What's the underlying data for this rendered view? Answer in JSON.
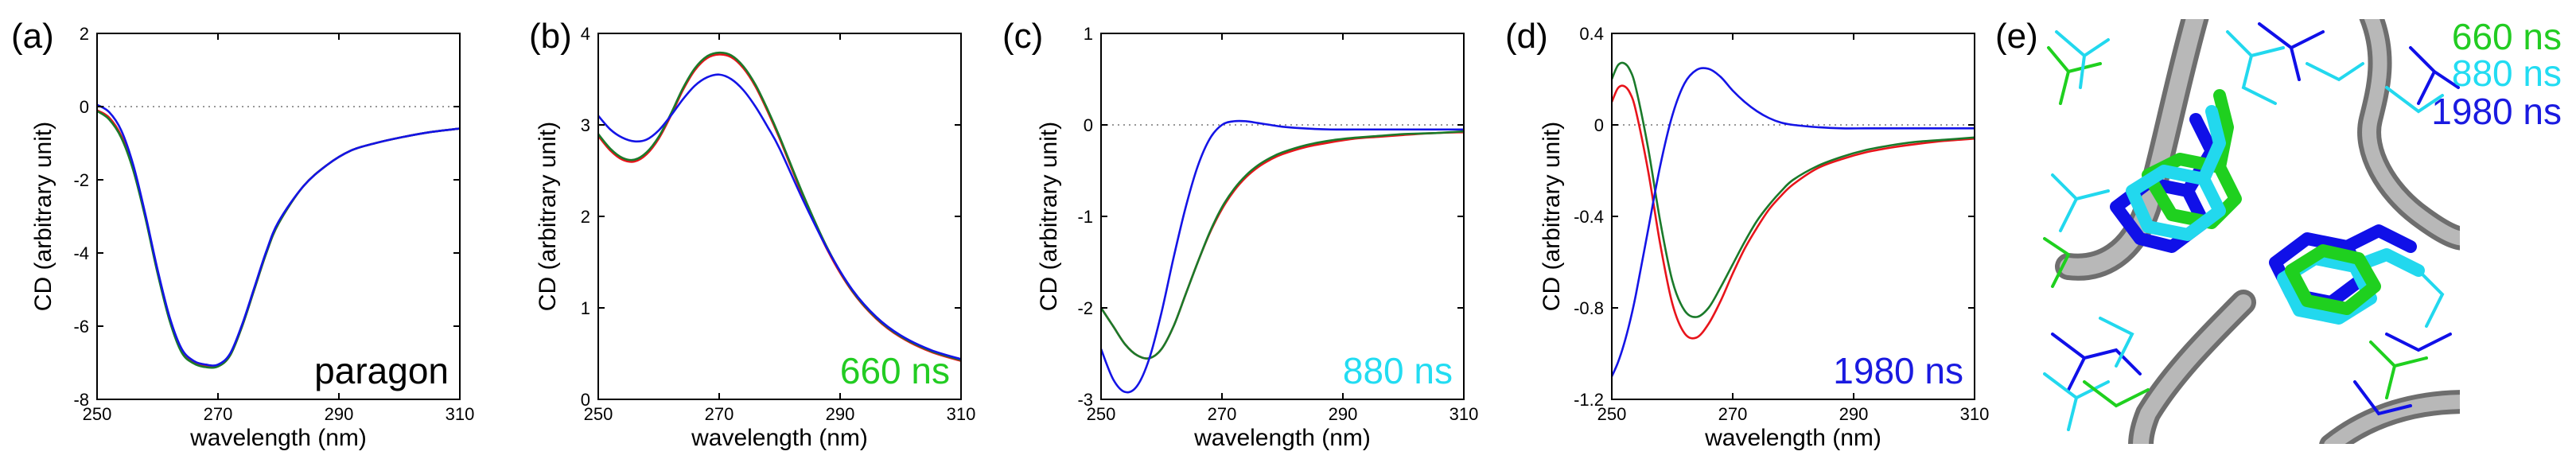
{
  "colors": {
    "red": "#e8141b",
    "green": "#1a7a2a",
    "blue": "#1414e6",
    "ann_green": "#22cc22",
    "ann_cyan": "#22dcf2",
    "ann_blue": "#1a1ae0",
    "structure_green": "#1fd01f",
    "structure_cyan": "#22d8ee",
    "structure_blue": "#1010e8",
    "backbone_gray": "#9a9a9a"
  },
  "chart_data": [
    {
      "type": "line",
      "panel_label": "(a)",
      "annotation": "paragon",
      "annotation_color": "#000000",
      "xlabel": "wavelength (nm)",
      "ylabel": "CD (arbitrary unit)",
      "xlim": [
        250,
        310
      ],
      "ylim": [
        -8,
        2
      ],
      "xticks": [
        250,
        270,
        290,
        310
      ],
      "yticks": [
        -8,
        -6,
        -4,
        -2,
        0,
        2
      ],
      "zero_line": true,
      "series": [
        {
          "name": "red",
          "color": "#e8141b",
          "x": [
            250,
            252,
            254,
            256,
            258,
            260,
            262,
            264,
            266,
            268,
            270,
            272,
            274,
            276,
            278,
            280,
            284,
            288,
            292,
            296,
            300,
            305,
            310
          ],
          "y": [
            -0.1,
            -0.3,
            -0.8,
            -1.7,
            -3.0,
            -4.5,
            -5.8,
            -6.7,
            -7.0,
            -7.1,
            -7.1,
            -6.8,
            -6.0,
            -5.0,
            -4.0,
            -3.2,
            -2.2,
            -1.6,
            -1.2,
            -1.0,
            -0.85,
            -0.7,
            -0.6
          ]
        },
        {
          "name": "green",
          "color": "#1a7a2a",
          "x": [
            250,
            252,
            254,
            256,
            258,
            260,
            262,
            264,
            266,
            268,
            270,
            272,
            274,
            276,
            278,
            280,
            284,
            288,
            292,
            296,
            300,
            305,
            310
          ],
          "y": [
            -0.12,
            -0.35,
            -0.85,
            -1.75,
            -3.05,
            -4.55,
            -5.85,
            -6.72,
            -7.02,
            -7.12,
            -7.1,
            -6.8,
            -6.0,
            -5.0,
            -4.0,
            -3.2,
            -2.2,
            -1.6,
            -1.2,
            -1.0,
            -0.85,
            -0.7,
            -0.6
          ]
        },
        {
          "name": "blue",
          "color": "#1414e6",
          "x": [
            250,
            252,
            254,
            256,
            258,
            260,
            262,
            264,
            266,
            268,
            270,
            272,
            274,
            276,
            278,
            280,
            284,
            288,
            292,
            296,
            300,
            305,
            310
          ],
          "y": [
            0.05,
            -0.15,
            -0.65,
            -1.6,
            -2.95,
            -4.45,
            -5.75,
            -6.62,
            -6.95,
            -7.05,
            -7.05,
            -6.75,
            -5.95,
            -4.95,
            -3.95,
            -3.15,
            -2.2,
            -1.6,
            -1.2,
            -1.0,
            -0.85,
            -0.7,
            -0.6
          ]
        }
      ]
    },
    {
      "type": "line",
      "panel_label": "(b)",
      "annotation": "660 ns",
      "annotation_color": "#22cc22",
      "xlabel": "wavelength (nm)",
      "ylabel": "CD (arbitrary unit)",
      "xlim": [
        250,
        310
      ],
      "ylim": [
        0,
        4
      ],
      "xticks": [
        250,
        270,
        290,
        310
      ],
      "yticks": [
        0,
        1,
        2,
        3,
        4
      ],
      "zero_line": false,
      "series": [
        {
          "name": "red",
          "color": "#e8141b",
          "x": [
            250,
            252,
            254,
            256,
            258,
            260,
            262,
            264,
            266,
            268,
            270,
            272,
            274,
            276,
            278,
            280,
            284,
            288,
            292,
            296,
            300,
            305,
            310
          ],
          "y": [
            2.88,
            2.72,
            2.62,
            2.6,
            2.68,
            2.85,
            3.1,
            3.38,
            3.6,
            3.73,
            3.77,
            3.74,
            3.62,
            3.42,
            3.15,
            2.85,
            2.2,
            1.62,
            1.18,
            0.88,
            0.68,
            0.52,
            0.42
          ]
        },
        {
          "name": "green",
          "color": "#1a7a2a",
          "x": [
            250,
            252,
            254,
            256,
            258,
            260,
            262,
            264,
            266,
            268,
            270,
            272,
            274,
            276,
            278,
            280,
            284,
            288,
            292,
            296,
            300,
            305,
            310
          ],
          "y": [
            2.9,
            2.74,
            2.64,
            2.62,
            2.7,
            2.87,
            3.12,
            3.4,
            3.62,
            3.75,
            3.79,
            3.76,
            3.64,
            3.44,
            3.17,
            2.87,
            2.22,
            1.64,
            1.19,
            0.89,
            0.69,
            0.53,
            0.43
          ]
        },
        {
          "name": "blue",
          "color": "#1414e6",
          "x": [
            250,
            252,
            254,
            256,
            258,
            260,
            262,
            264,
            266,
            268,
            270,
            272,
            274,
            276,
            278,
            280,
            284,
            288,
            292,
            296,
            300,
            305,
            310
          ],
          "y": [
            3.1,
            2.95,
            2.86,
            2.82,
            2.84,
            2.94,
            3.1,
            3.28,
            3.43,
            3.52,
            3.55,
            3.5,
            3.38,
            3.2,
            2.98,
            2.74,
            2.16,
            1.63,
            1.2,
            0.9,
            0.7,
            0.54,
            0.44
          ]
        }
      ]
    },
    {
      "type": "line",
      "panel_label": "(c)",
      "annotation": "880 ns",
      "annotation_color": "#22dcf2",
      "xlabel": "wavelength (nm)",
      "ylabel": "CD (arbitrary unit)",
      "xlim": [
        250,
        310
      ],
      "ylim": [
        -3,
        1
      ],
      "xticks": [
        250,
        270,
        290,
        310
      ],
      "yticks": [
        -3,
        -2,
        -1,
        0,
        1
      ],
      "zero_line": true,
      "series": [
        {
          "name": "red",
          "color": "#e8141b",
          "x": [
            250,
            252,
            254,
            256,
            258,
            260,
            262,
            264,
            266,
            268,
            270,
            272,
            274,
            276,
            278,
            280,
            284,
            288,
            292,
            296,
            300,
            305,
            310
          ],
          "y": [
            -2.0,
            -2.2,
            -2.4,
            -2.52,
            -2.55,
            -2.45,
            -2.2,
            -1.85,
            -1.5,
            -1.18,
            -0.92,
            -0.72,
            -0.57,
            -0.46,
            -0.38,
            -0.32,
            -0.24,
            -0.19,
            -0.15,
            -0.13,
            -0.11,
            -0.09,
            -0.08
          ]
        },
        {
          "name": "green",
          "color": "#1a7a2a",
          "x": [
            250,
            252,
            254,
            256,
            258,
            260,
            262,
            264,
            266,
            268,
            270,
            272,
            274,
            276,
            278,
            280,
            284,
            288,
            292,
            296,
            300,
            305,
            310
          ],
          "y": [
            -2.0,
            -2.2,
            -2.4,
            -2.52,
            -2.55,
            -2.45,
            -2.2,
            -1.85,
            -1.5,
            -1.17,
            -0.9,
            -0.7,
            -0.55,
            -0.44,
            -0.36,
            -0.3,
            -0.22,
            -0.17,
            -0.14,
            -0.12,
            -0.1,
            -0.09,
            -0.07
          ]
        },
        {
          "name": "blue",
          "color": "#1414e6",
          "x": [
            250,
            252,
            254,
            256,
            258,
            260,
            262,
            264,
            266,
            268,
            270,
            272,
            274,
            276,
            278,
            280,
            284,
            288,
            292,
            296,
            300,
            305,
            310
          ],
          "y": [
            -2.45,
            -2.78,
            -2.92,
            -2.85,
            -2.55,
            -2.05,
            -1.45,
            -0.9,
            -0.45,
            -0.15,
            0.0,
            0.04,
            0.04,
            0.02,
            0.0,
            -0.02,
            -0.04,
            -0.05,
            -0.05,
            -0.05,
            -0.05,
            -0.05,
            -0.05
          ]
        }
      ]
    },
    {
      "type": "line",
      "panel_label": "(d)",
      "annotation": "1980 ns",
      "annotation_color": "#1a1ae0",
      "xlabel": "wavelength (nm)",
      "ylabel": "CD (arbitrary unit)",
      "xlim": [
        250,
        310
      ],
      "ylim": [
        -1.2,
        0.4
      ],
      "xticks": [
        250,
        270,
        290,
        310
      ],
      "yticks": [
        -1.2,
        -0.8,
        -0.4,
        0,
        0.4
      ],
      "zero_line": true,
      "series": [
        {
          "name": "red",
          "color": "#e8141b",
          "x": [
            250,
            251,
            252,
            253,
            254,
            256,
            258,
            260,
            262,
            264,
            266,
            268,
            270,
            272,
            274,
            276,
            278,
            280,
            284,
            288,
            292,
            296,
            300,
            305,
            310
          ],
          "y": [
            0.1,
            0.16,
            0.17,
            0.14,
            0.06,
            -0.2,
            -0.52,
            -0.78,
            -0.91,
            -0.93,
            -0.87,
            -0.77,
            -0.65,
            -0.54,
            -0.45,
            -0.37,
            -0.31,
            -0.26,
            -0.19,
            -0.15,
            -0.12,
            -0.1,
            -0.085,
            -0.07,
            -0.06
          ]
        },
        {
          "name": "green",
          "color": "#1a7a2a",
          "x": [
            250,
            251,
            252,
            253,
            254,
            256,
            258,
            260,
            262,
            264,
            266,
            268,
            270,
            272,
            274,
            276,
            278,
            280,
            284,
            288,
            292,
            296,
            300,
            305,
            310
          ],
          "y": [
            0.2,
            0.26,
            0.27,
            0.24,
            0.16,
            -0.1,
            -0.42,
            -0.68,
            -0.81,
            -0.84,
            -0.8,
            -0.71,
            -0.61,
            -0.51,
            -0.42,
            -0.35,
            -0.29,
            -0.24,
            -0.18,
            -0.14,
            -0.11,
            -0.09,
            -0.075,
            -0.065,
            -0.055
          ]
        },
        {
          "name": "blue",
          "color": "#1414e6",
          "x": [
            250,
            251,
            252,
            253,
            254,
            256,
            258,
            260,
            262,
            264,
            266,
            268,
            270,
            272,
            274,
            276,
            278,
            280,
            284,
            288,
            292,
            296,
            300,
            305,
            310
          ],
          "y": [
            -1.1,
            -1.04,
            -0.96,
            -0.86,
            -0.74,
            -0.46,
            -0.18,
            0.04,
            0.18,
            0.24,
            0.245,
            0.21,
            0.15,
            0.1,
            0.06,
            0.03,
            0.01,
            0.0,
            -0.01,
            -0.015,
            -0.015,
            -0.015,
            -0.015,
            -0.015,
            -0.015
          ]
        }
      ]
    }
  ],
  "structure_panel": {
    "panel_label": "(e)",
    "legend": [
      "660 ns",
      "880 ns",
      "1980 ns"
    ]
  }
}
